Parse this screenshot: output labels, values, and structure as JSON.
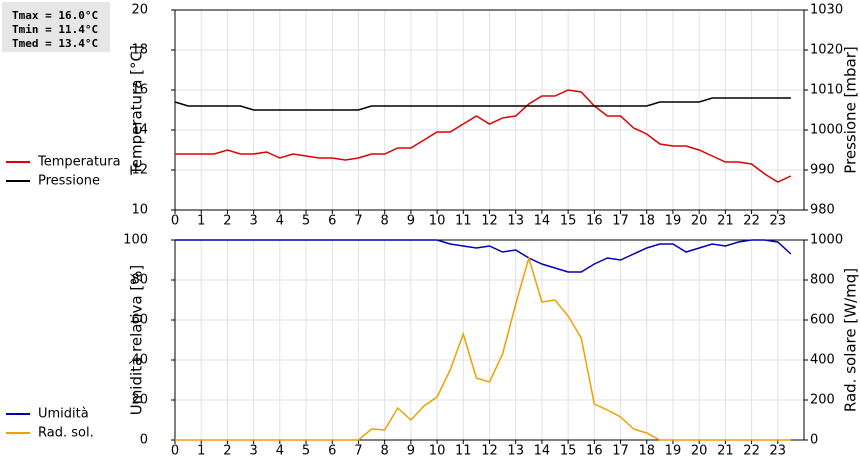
{
  "chart_data": [
    {
      "type": "line",
      "annotations": [
        "Tmax = 16.0°C",
        "Tmin = 11.4°C",
        "Tmed = 13.4°C"
      ],
      "ylabel": "Temperatura [°C]",
      "y2label": "Pressione [mbar]",
      "xlim": [
        0,
        24
      ],
      "xticks": [
        0,
        1,
        2,
        3,
        4,
        5,
        6,
        7,
        8,
        9,
        10,
        11,
        12,
        13,
        14,
        15,
        16,
        17,
        18,
        19,
        20,
        21,
        22,
        23
      ],
      "ylim": [
        10,
        20
      ],
      "yticks": [
        10,
        12,
        14,
        16,
        18,
        20
      ],
      "y2lim": [
        980,
        1030
      ],
      "y2ticks": [
        980,
        990,
        1000,
        1010,
        1020,
        1030
      ],
      "grid": true,
      "x": [
        0,
        0.5,
        1,
        1.5,
        2,
        2.5,
        3,
        3.5,
        4,
        4.5,
        5,
        5.5,
        6,
        6.5,
        7,
        7.5,
        8,
        8.5,
        9,
        9.5,
        10,
        10.5,
        11,
        11.5,
        12,
        12.5,
        13,
        13.5,
        14,
        14.5,
        15,
        15.5,
        16,
        16.5,
        17,
        17.5,
        18,
        18.5,
        19,
        19.5,
        20,
        20.5,
        21,
        21.5,
        22,
        22.5,
        23,
        23.5
      ],
      "series": [
        {
          "name": "Temperatura",
          "color": "#dd0000",
          "axis": "y",
          "values": [
            12.8,
            12.8,
            12.8,
            12.8,
            13.0,
            12.8,
            12.8,
            12.9,
            12.6,
            12.8,
            12.7,
            12.6,
            12.6,
            12.5,
            12.6,
            12.8,
            12.8,
            13.1,
            13.1,
            13.5,
            13.9,
            13.9,
            14.3,
            14.7,
            14.3,
            14.6,
            14.7,
            15.3,
            15.7,
            15.7,
            16.0,
            15.9,
            15.2,
            14.7,
            14.7,
            14.1,
            13.8,
            13.3,
            13.2,
            13.2,
            13.0,
            12.7,
            12.4,
            12.4,
            12.3,
            11.8,
            11.4,
            11.7
          ]
        },
        {
          "name": "Pressione",
          "color": "#000000",
          "axis": "y2",
          "values": [
            1007,
            1006,
            1006,
            1006,
            1006,
            1006,
            1005,
            1005,
            1005,
            1005,
            1005,
            1005,
            1005,
            1005,
            1005,
            1006,
            1006,
            1006,
            1006,
            1006,
            1006,
            1006,
            1006,
            1006,
            1006,
            1006,
            1006,
            1006,
            1006,
            1006,
            1006,
            1006,
            1006,
            1006,
            1006,
            1006,
            1006,
            1007,
            1007,
            1007,
            1007,
            1008,
            1008,
            1008,
            1008,
            1008,
            1008,
            1008
          ]
        }
      ]
    },
    {
      "type": "line",
      "ylabel": "Umidità relativa [%]",
      "y2label": "Rad. solare [W/mq]",
      "xlim": [
        0,
        24
      ],
      "xticks": [
        0,
        1,
        2,
        3,
        4,
        5,
        6,
        7,
        8,
        9,
        10,
        11,
        12,
        13,
        14,
        15,
        16,
        17,
        18,
        19,
        20,
        21,
        22,
        23
      ],
      "ylim": [
        0,
        100
      ],
      "yticks": [
        0,
        20,
        40,
        60,
        80,
        100
      ],
      "y2lim": [
        0,
        1000
      ],
      "y2ticks": [
        0,
        200,
        400,
        600,
        800,
        1000
      ],
      "grid": true,
      "x": [
        0,
        0.5,
        1,
        1.5,
        2,
        2.5,
        3,
        3.5,
        4,
        4.5,
        5,
        5.5,
        6,
        6.5,
        7,
        7.5,
        8,
        8.5,
        9,
        9.5,
        10,
        10.5,
        11,
        11.5,
        12,
        12.5,
        13,
        13.5,
        14,
        14.5,
        15,
        15.5,
        16,
        16.5,
        17,
        17.5,
        18,
        18.5,
        19,
        19.5,
        20,
        20.5,
        21,
        21.5,
        22,
        22.5,
        23,
        23.5
      ],
      "series": [
        {
          "name": "Umidità",
          "color": "#0000bb",
          "axis": "y",
          "values": [
            100,
            100,
            100,
            100,
            100,
            100,
            100,
            100,
            100,
            100,
            100,
            100,
            100,
            100,
            100,
            100,
            100,
            100,
            100,
            100,
            100,
            98,
            97,
            96,
            97,
            94,
            95,
            91,
            88,
            86,
            84,
            84,
            88,
            91,
            90,
            93,
            96,
            98,
            98,
            94,
            96,
            98,
            97,
            99,
            100,
            100,
            99,
            93
          ]
        },
        {
          "name": "Rad. sol.",
          "color": "#f0a000",
          "axis": "y2",
          "values": [
            0,
            0,
            0,
            0,
            0,
            0,
            0,
            0,
            0,
            0,
            0,
            0,
            0,
            0,
            0,
            55,
            50,
            160,
            100,
            170,
            215,
            350,
            530,
            310,
            290,
            430,
            680,
            910,
            690,
            700,
            620,
            510,
            180,
            150,
            115,
            55,
            35,
            0,
            0,
            0,
            0,
            0,
            0,
            0,
            0,
            0,
            0,
            0
          ]
        }
      ]
    }
  ]
}
